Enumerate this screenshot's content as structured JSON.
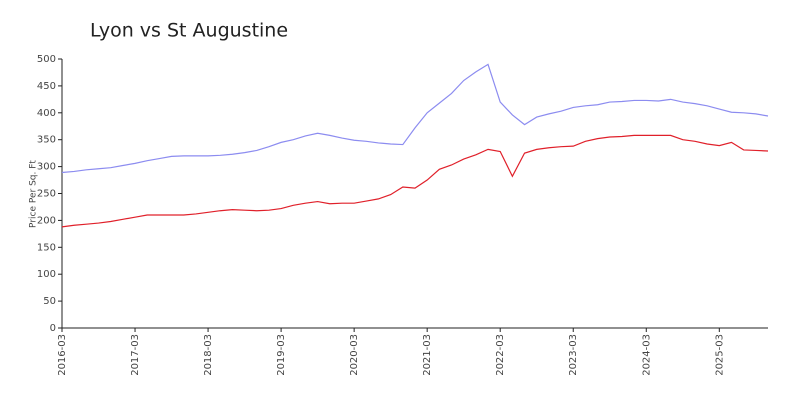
{
  "chart_data": {
    "type": "line",
    "title": "Lyon vs St Augustine",
    "ylabel": "Price Per Sq. Ft",
    "x": [
      "2016-03",
      "2016-05",
      "2016-07",
      "2016-09",
      "2016-11",
      "2017-01",
      "2017-03",
      "2017-05",
      "2017-07",
      "2017-09",
      "2017-11",
      "2018-01",
      "2018-03",
      "2018-05",
      "2018-07",
      "2018-09",
      "2018-11",
      "2019-01",
      "2019-03",
      "2019-05",
      "2019-07",
      "2019-09",
      "2019-11",
      "2020-01",
      "2020-03",
      "2020-05",
      "2020-07",
      "2020-09",
      "2020-11",
      "2021-01",
      "2021-03",
      "2021-05",
      "2021-07",
      "2021-09",
      "2021-11",
      "2022-01",
      "2022-03",
      "2022-05",
      "2022-07",
      "2022-09",
      "2022-11",
      "2023-01",
      "2023-03",
      "2023-05",
      "2023-07",
      "2023-09",
      "2023-11",
      "2024-01",
      "2024-03",
      "2024-05",
      "2024-07",
      "2024-09",
      "2024-11",
      "2025-01",
      "2025-03",
      "2025-05",
      "2025-07",
      "2025-09",
      "2025-11"
    ],
    "series": [
      {
        "color": "#8c8cf0",
        "values": [
          289,
          291,
          294,
          296,
          298,
          302,
          306,
          311,
          315,
          319,
          320,
          320,
          320,
          321,
          323,
          326,
          330,
          337,
          345,
          350,
          357,
          362,
          358,
          353,
          349,
          347,
          344,
          342,
          341,
          372,
          400,
          418,
          436,
          460,
          476,
          490,
          420,
          396,
          378,
          392,
          398,
          403,
          410,
          413,
          415,
          420,
          421,
          423,
          423,
          422,
          425,
          420,
          417,
          413,
          407,
          401,
          400,
          398,
          394
        ]
      },
      {
        "color": "#e0202a",
        "values": [
          188,
          191,
          193,
          195,
          198,
          202,
          206,
          210,
          210,
          210,
          210,
          212,
          215,
          218,
          220,
          219,
          218,
          219,
          222,
          228,
          232,
          235,
          231,
          232,
          232,
          236,
          240,
          248,
          262,
          260,
          275,
          295,
          303,
          314,
          322,
          332,
          328,
          282,
          325,
          332,
          335,
          337,
          338,
          347,
          352,
          355,
          356,
          358,
          358,
          358,
          358,
          350,
          347,
          342,
          339,
          345,
          331,
          330,
          329
        ]
      }
    ],
    "xticks": [
      "2016-03",
      "2017-03",
      "2018-03",
      "2019-03",
      "2020-03",
      "2021-03",
      "2022-03",
      "2023-03",
      "2024-03",
      "2025-03"
    ],
    "ylim": [
      0,
      500
    ],
    "yticks": [
      0,
      50,
      100,
      150,
      200,
      250,
      300,
      350,
      400,
      450,
      500
    ]
  }
}
